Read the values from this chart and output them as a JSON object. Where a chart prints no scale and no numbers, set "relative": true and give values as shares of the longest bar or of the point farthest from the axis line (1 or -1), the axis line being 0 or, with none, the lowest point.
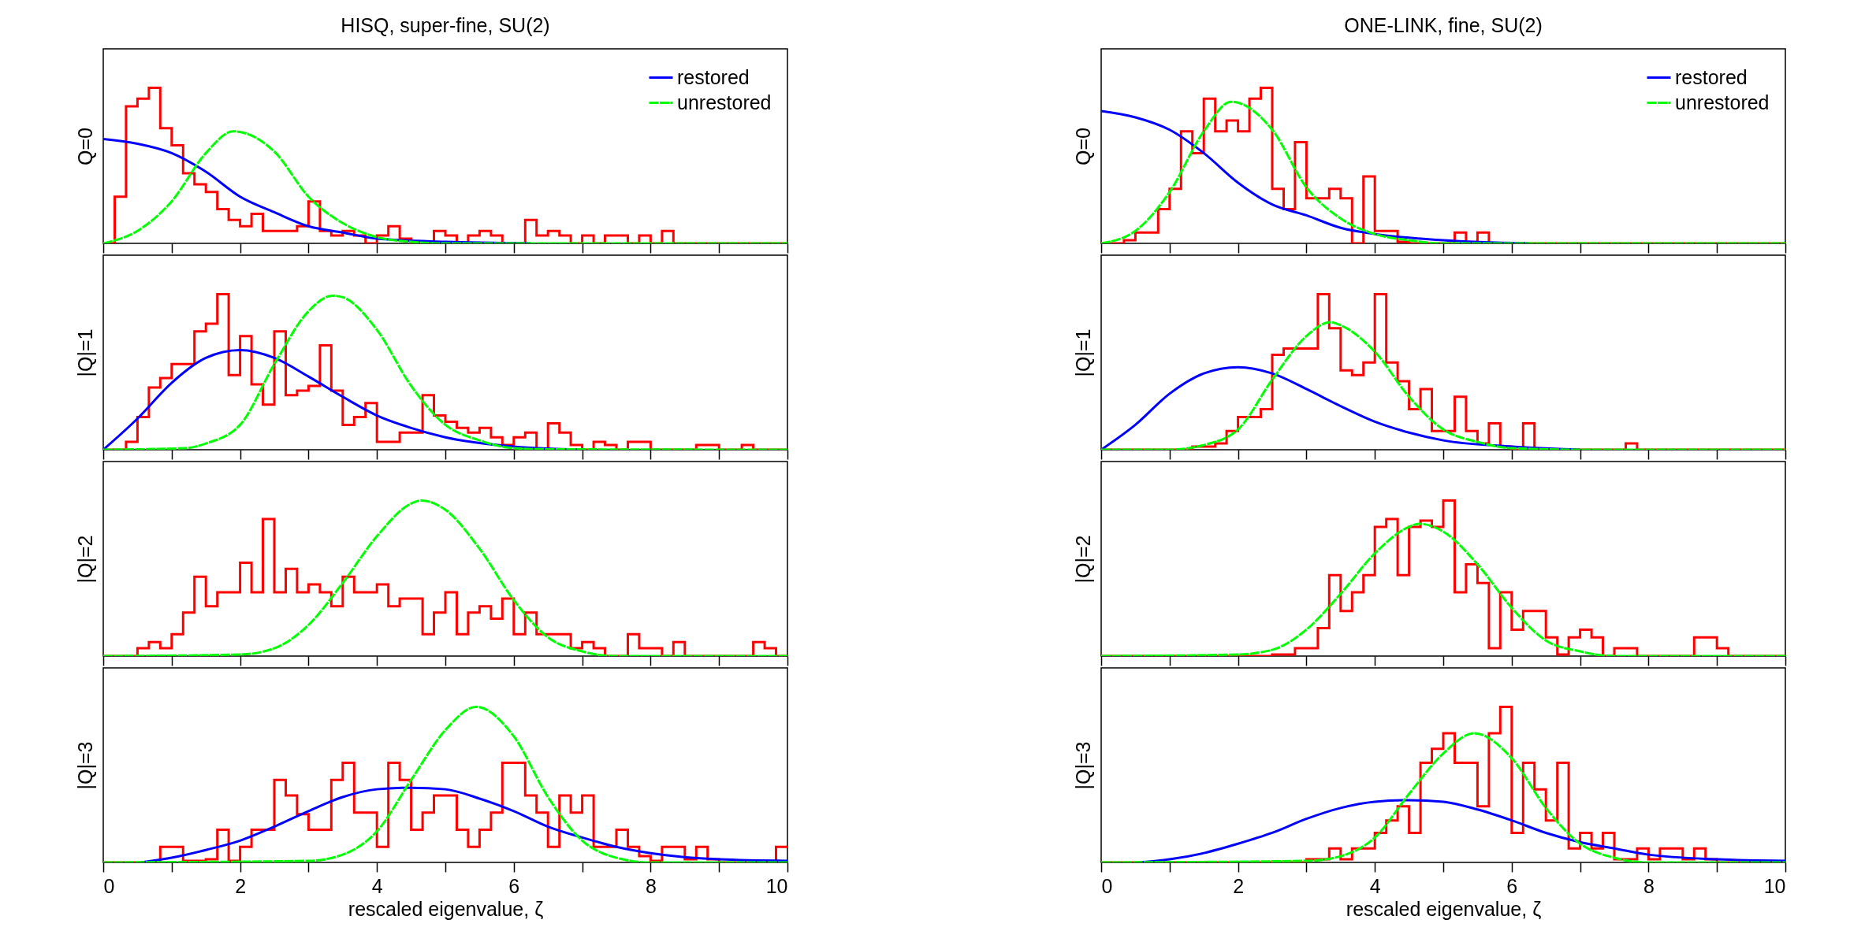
{
  "chart_data": [
    {
      "type": "line",
      "title": "HISQ, super-fine, SU(2)",
      "ylabel": "Q=0",
      "relative": true,
      "xlim": [
        0,
        10
      ],
      "xticks": [
        0,
        {
          "value": 1,
          "label": null
        },
        2,
        {
          "value": 3,
          "label": null
        },
        4,
        {
          "value": 5,
          "label": null
        },
        6,
        {
          "value": 7,
          "label": null
        },
        8,
        {
          "value": 9,
          "label": null
        },
        10
      ],
      "tick_labels": false,
      "legend": "top right",
      "series": [
        {
          "type": "histogram",
          "color": "#ff0000",
          "bins": [
            0,
            0.167,
            0.333,
            0.5,
            0.667,
            0.833,
            1,
            1.167,
            1.333,
            1.5,
            1.667,
            1.833,
            2,
            2.167,
            2.333,
            2.5,
            2.667,
            2.833,
            3,
            3.167,
            3.333,
            3.5,
            3.667,
            3.833,
            4,
            4.167,
            4.333,
            4.5,
            4.667,
            4.833,
            5,
            5.167,
            5.333,
            5.5,
            5.667,
            5.833,
            6,
            6.167,
            6.333,
            6.5,
            6.667,
            6.833,
            7,
            7.167,
            7.333,
            7.5,
            7.667,
            7.833,
            8,
            8.167,
            8.333,
            8.5,
            8.667,
            8.833,
            9,
            9.167,
            9.333,
            9.5,
            9.667,
            9.833,
            10
          ],
          "values": [
            0,
            0.3,
            0.88,
            0.93,
            1,
            0.74,
            0.63,
            0.45,
            0.38,
            0.33,
            0.22,
            0.15,
            0.11,
            0.19,
            0.08,
            0.08,
            0.08,
            0.11,
            0.27,
            0.08,
            0.05,
            0.08,
            0.05,
            0,
            0.05,
            0.11,
            0.03,
            0,
            0,
            0.08,
            0.05,
            0,
            0.05,
            0.08,
            0.05,
            0,
            0,
            0.15,
            0.05,
            0.08,
            0.05,
            0,
            0.05,
            0,
            0.05,
            0.05,
            0,
            0.05,
            0,
            0.08,
            0,
            0,
            0,
            0,
            0,
            0,
            0,
            0,
            0,
            0
          ]
        },
        {
          "name": "restored",
          "type": "line",
          "color": "#0000ff",
          "x": [
            0,
            0.5,
            1,
            1.5,
            2,
            2.5,
            3,
            3.5,
            4,
            5,
            6.25
          ],
          "values": [
            0.67,
            0.64,
            0.58,
            0.46,
            0.3,
            0.2,
            0.11,
            0.07,
            0.03,
            0.01,
            0
          ]
        },
        {
          "name": "unrestored",
          "type": "line",
          "color": "#00ff00",
          "line_style": "dashed",
          "x": [
            0,
            0.5,
            1,
            1.5,
            1.9,
            2.5,
            3,
            3.5,
            4,
            4.5,
            5,
            10
          ],
          "values": [
            0,
            0.08,
            0.27,
            0.58,
            0.72,
            0.59,
            0.3,
            0.13,
            0.04,
            0.01,
            0,
            0
          ]
        }
      ]
    },
    {
      "type": "line",
      "title": "ONE-LINK, fine, SU(2)",
      "ylabel": "Q=0",
      "relative": true,
      "xlim": [
        0,
        10
      ],
      "xticks": [
        0,
        {
          "value": 1,
          "label": null
        },
        2,
        {
          "value": 3,
          "label": null
        },
        4,
        {
          "value": 5,
          "label": null
        },
        6,
        {
          "value": 7,
          "label": null
        },
        8,
        {
          "value": 9,
          "label": null
        },
        10
      ],
      "tick_labels": false,
      "legend": "top right",
      "series": [
        {
          "type": "histogram",
          "color": "#ff0000",
          "bins": [
            0,
            0.167,
            0.333,
            0.5,
            0.667,
            0.833,
            1,
            1.167,
            1.333,
            1.5,
            1.667,
            1.833,
            2,
            2.167,
            2.333,
            2.5,
            2.667,
            2.833,
            3,
            3.167,
            3.333,
            3.5,
            3.667,
            3.833,
            4,
            4.167,
            4.333,
            4.5,
            4.667,
            4.833,
            5,
            5.167,
            5.333,
            5.5,
            5.667,
            5.833,
            6,
            6.167,
            6.333,
            6.5,
            6.667,
            6.833,
            7,
            7.167,
            7.333,
            7.5,
            7.667,
            7.833,
            8,
            8.167,
            8.333,
            8.5,
            8.667,
            8.833,
            9,
            9.167,
            9.333,
            9.5,
            9.667,
            9.833,
            10
          ],
          "values": [
            0,
            0,
            0.02,
            0.07,
            0.07,
            0.22,
            0.35,
            0.72,
            0.58,
            0.93,
            0.72,
            0.79,
            0.72,
            0.93,
            1,
            0.35,
            0.22,
            0.65,
            0.29,
            0.29,
            0.35,
            0.29,
            0,
            0.43,
            0.08,
            0.08,
            0.01,
            0,
            0,
            0,
            0,
            0.07,
            0,
            0.07,
            0,
            0,
            0,
            0,
            0,
            0,
            0,
            0,
            0,
            0,
            0,
            0,
            0,
            0,
            0,
            0,
            0,
            0,
            0,
            0,
            0,
            0,
            0,
            0,
            0,
            0
          ]
        },
        {
          "name": "restored",
          "type": "line",
          "color": "#0000ff",
          "x": [
            0,
            0.5,
            1,
            1.5,
            2,
            2.5,
            3,
            3.5,
            4,
            5,
            6.25
          ],
          "values": [
            0.85,
            0.81,
            0.73,
            0.58,
            0.39,
            0.25,
            0.18,
            0.1,
            0.06,
            0.02,
            0
          ]
        },
        {
          "name": "unrestored",
          "type": "line",
          "color": "#00ff00",
          "line_style": "dashed",
          "x": [
            0,
            0.5,
            1,
            1.5,
            1.9,
            2.5,
            3,
            3.5,
            4,
            4.5,
            5,
            10
          ],
          "values": [
            0,
            0.08,
            0.33,
            0.72,
            0.91,
            0.73,
            0.36,
            0.16,
            0.06,
            0.02,
            0,
            0
          ]
        }
      ]
    },
    {
      "type": "line",
      "ylabel": "|Q|=1",
      "relative": true,
      "xlim": [
        0,
        10
      ],
      "xticks": [
        0,
        {
          "value": 1,
          "label": null
        },
        2,
        {
          "value": 3,
          "label": null
        },
        4,
        {
          "value": 5,
          "label": null
        },
        6,
        {
          "value": 7,
          "label": null
        },
        8,
        {
          "value": 9,
          "label": null
        },
        10
      ],
      "tick_labels": false,
      "series": [
        {
          "type": "histogram",
          "color": "#ff0000",
          "bins": [
            0,
            0.167,
            0.333,
            0.5,
            0.667,
            0.833,
            1,
            1.167,
            1.333,
            1.5,
            1.667,
            1.833,
            2,
            2.167,
            2.333,
            2.5,
            2.667,
            2.833,
            3,
            3.167,
            3.333,
            3.5,
            3.667,
            3.833,
            4,
            4.167,
            4.333,
            4.5,
            4.667,
            4.833,
            5,
            5.167,
            5.333,
            5.5,
            5.667,
            5.833,
            6,
            6.167,
            6.333,
            6.5,
            6.667,
            6.833,
            7,
            7.167,
            7.333,
            7.5,
            7.667,
            7.833,
            8,
            8.167,
            8.333,
            8.5,
            8.667,
            8.833,
            9,
            9.167,
            9.333,
            9.5,
            9.667,
            9.833,
            10
          ],
          "values": [
            0,
            0,
            0.05,
            0.21,
            0.4,
            0.46,
            0.55,
            0.55,
            0.76,
            0.81,
            1,
            0.48,
            0.73,
            0.42,
            0.29,
            0.76,
            0.35,
            0.38,
            0.41,
            0.67,
            0.38,
            0.16,
            0.21,
            0.3,
            0.05,
            0.05,
            0.11,
            0.11,
            0.35,
            0.22,
            0.18,
            0.14,
            0.11,
            0.14,
            0.08,
            0.03,
            0.08,
            0.11,
            0,
            0.17,
            0.11,
            0.03,
            0,
            0.05,
            0.03,
            0,
            0.05,
            0.05,
            0,
            0,
            0,
            0,
            0.03,
            0.03,
            0,
            0,
            0.03,
            0,
            0,
            0
          ]
        },
        {
          "type": "line",
          "color": "#0000ff",
          "x": [
            0,
            0.5,
            1,
            1.5,
            2,
            2.5,
            3,
            3.5,
            4,
            4.5,
            5,
            6,
            7
          ],
          "values": [
            0,
            0.2,
            0.43,
            0.59,
            0.64,
            0.59,
            0.47,
            0.34,
            0.22,
            0.14,
            0.08,
            0.02,
            0
          ]
        },
        {
          "type": "line",
          "color": "#00ff00",
          "line_style": "dashed",
          "x": [
            0,
            1.2,
            1.5,
            2,
            2.5,
            3,
            3.35,
            3.5,
            4,
            4.5,
            5,
            5.5,
            6,
            6.5,
            10
          ],
          "values": [
            0,
            0.01,
            0.04,
            0.16,
            0.55,
            0.89,
            0.99,
            0.98,
            0.77,
            0.41,
            0.16,
            0.06,
            0.01,
            0.003,
            0
          ]
        }
      ]
    },
    {
      "type": "line",
      "ylabel": "|Q|=1",
      "relative": true,
      "xlim": [
        0,
        10
      ],
      "xticks": [
        0,
        {
          "value": 1,
          "label": null
        },
        2,
        {
          "value": 3,
          "label": null
        },
        4,
        {
          "value": 5,
          "label": null
        },
        6,
        {
          "value": 7,
          "label": null
        },
        8,
        {
          "value": 9,
          "label": null
        },
        10
      ],
      "tick_labels": false,
      "series": [
        {
          "type": "histogram",
          "color": "#ff0000",
          "bins": [
            0,
            0.167,
            0.333,
            0.5,
            0.667,
            0.833,
            1,
            1.167,
            1.333,
            1.5,
            1.667,
            1.833,
            2,
            2.167,
            2.333,
            2.5,
            2.667,
            2.833,
            3,
            3.167,
            3.333,
            3.5,
            3.667,
            3.833,
            4,
            4.167,
            4.333,
            4.5,
            4.667,
            4.833,
            5,
            5.167,
            5.333,
            5.5,
            5.667,
            5.833,
            6,
            6.167,
            6.333,
            6.5,
            6.667,
            6.833,
            7,
            7.167,
            7.333,
            7.5,
            7.667,
            7.833,
            8,
            8.167,
            8.333,
            8.5,
            8.667,
            8.833,
            9,
            9.167,
            9.333,
            9.5,
            9.667,
            9.833,
            10
          ],
          "values": [
            0,
            0,
            0,
            0,
            0,
            0,
            0,
            0,
            0.02,
            0.02,
            0.04,
            0.12,
            0.21,
            0.21,
            0.26,
            0.61,
            0.65,
            0.65,
            0.65,
            1,
            0.78,
            0.51,
            0.48,
            0.56,
            1,
            0.56,
            0.44,
            0.26,
            0.39,
            0.12,
            0.12,
            0.34,
            0.12,
            0.04,
            0.17,
            0.02,
            0,
            0.17,
            0,
            0,
            0,
            0,
            0,
            0,
            0,
            0,
            0.04,
            0,
            0,
            0,
            0,
            0,
            0,
            0,
            0,
            0,
            0,
            0,
            0,
            0
          ]
        },
        {
          "type": "line",
          "color": "#0000ff",
          "x": [
            0,
            0.5,
            1,
            1.5,
            2,
            2.5,
            3,
            3.5,
            4,
            4.5,
            5,
            6,
            7
          ],
          "values": [
            0,
            0.16,
            0.36,
            0.49,
            0.53,
            0.49,
            0.39,
            0.28,
            0.18,
            0.11,
            0.06,
            0.02,
            0
          ]
        },
        {
          "type": "line",
          "color": "#00ff00",
          "line_style": "dashed",
          "x": [
            0,
            1,
            1.5,
            2,
            2.5,
            3,
            3.35,
            3.5,
            4,
            4.5,
            5,
            5.5,
            6,
            7,
            10
          ],
          "values": [
            0,
            0,
            0.03,
            0.13,
            0.45,
            0.73,
            0.82,
            0.8,
            0.63,
            0.34,
            0.13,
            0.05,
            0.01,
            0,
            0
          ]
        }
      ]
    },
    {
      "type": "line",
      "ylabel": "|Q|=2",
      "relative": true,
      "xlim": [
        0,
        10
      ],
      "xticks": [
        0,
        {
          "value": 1,
          "label": null
        },
        2,
        {
          "value": 3,
          "label": null
        },
        4,
        {
          "value": 5,
          "label": null
        },
        6,
        {
          "value": 7,
          "label": null
        },
        8,
        {
          "value": 9,
          "label": null
        },
        10
      ],
      "tick_labels": false,
      "series": [
        {
          "type": "histogram",
          "color": "#ff0000",
          "bins": [
            0,
            0.167,
            0.333,
            0.5,
            0.667,
            0.833,
            1,
            1.167,
            1.333,
            1.5,
            1.667,
            1.833,
            2,
            2.167,
            2.333,
            2.5,
            2.667,
            2.833,
            3,
            3.167,
            3.333,
            3.5,
            3.667,
            3.833,
            4,
            4.167,
            4.333,
            4.5,
            4.667,
            4.833,
            5,
            5.167,
            5.333,
            5.5,
            5.667,
            5.833,
            6,
            6.167,
            6.333,
            6.5,
            6.667,
            6.833,
            7,
            7.167,
            7.333,
            7.5,
            7.667,
            7.833,
            8,
            8.167,
            8.333,
            8.5,
            8.667,
            8.833,
            9,
            9.167,
            9.333,
            9.5,
            9.667,
            9.833,
            10
          ],
          "values": [
            0,
            0,
            0,
            0.05,
            0.09,
            0.05,
            0.14,
            0.28,
            0.51,
            0.32,
            0.41,
            0.41,
            0.6,
            0.41,
            0.88,
            0.41,
            0.56,
            0.41,
            0.46,
            0.41,
            0.32,
            0.51,
            0.41,
            0.41,
            0.46,
            0.32,
            0.37,
            0.37,
            0.14,
            0.28,
            0.41,
            0.14,
            0.28,
            0.32,
            0.24,
            0.37,
            0.14,
            0.28,
            0.14,
            0.14,
            0.14,
            0.05,
            0.09,
            0.05,
            0,
            0,
            0.14,
            0.05,
            0.05,
            0,
            0.09,
            0,
            0,
            0,
            0,
            0,
            0,
            0.09,
            0.05,
            0
          ]
        },
        {
          "type": "line",
          "color": "#00ff00",
          "line_style": "dashed",
          "x": [
            0,
            2,
            2.5,
            3,
            3.5,
            4,
            4.5,
            4.65,
            5,
            5.5,
            6,
            6.5,
            7,
            7.5,
            10
          ],
          "values": [
            0,
            0.01,
            0.05,
            0.2,
            0.47,
            0.77,
            0.98,
            1,
            0.94,
            0.69,
            0.36,
            0.12,
            0.03,
            0,
            0
          ]
        }
      ]
    },
    {
      "type": "line",
      "ylabel": "|Q|=2",
      "relative": true,
      "xlim": [
        0,
        10
      ],
      "xticks": [
        0,
        {
          "value": 1,
          "label": null
        },
        2,
        {
          "value": 3,
          "label": null
        },
        4,
        {
          "value": 5,
          "label": null
        },
        6,
        {
          "value": 7,
          "label": null
        },
        8,
        {
          "value": 9,
          "label": null
        },
        10
      ],
      "tick_labels": false,
      "series": [
        {
          "type": "histogram",
          "color": "#ff0000",
          "bins": [
            0,
            0.167,
            0.333,
            0.5,
            0.667,
            0.833,
            1,
            1.167,
            1.333,
            1.5,
            1.667,
            1.833,
            2,
            2.167,
            2.333,
            2.5,
            2.667,
            2.833,
            3,
            3.167,
            3.333,
            3.5,
            3.667,
            3.833,
            4,
            4.167,
            4.333,
            4.5,
            4.667,
            4.833,
            5,
            5.167,
            5.333,
            5.5,
            5.667,
            5.833,
            6,
            6.167,
            6.333,
            6.5,
            6.667,
            6.833,
            7,
            7.167,
            7.333,
            7.5,
            7.667,
            7.833,
            8,
            8.167,
            8.333,
            8.5,
            8.667,
            8.833,
            9,
            9.167,
            9.333,
            9.5,
            9.667,
            9.833,
            10
          ],
          "values": [
            0,
            0,
            0,
            0,
            0,
            0,
            0,
            0,
            0,
            0,
            0,
            0,
            0,
            0,
            0,
            0.01,
            0.01,
            0.05,
            0.05,
            0.18,
            0.52,
            0.29,
            0.41,
            0.52,
            0.83,
            0.88,
            0.52,
            0.83,
            0.87,
            0.83,
            1,
            0.41,
            0.59,
            0.47,
            0.05,
            0.41,
            0.17,
            0.29,
            0.29,
            0.12,
            0.01,
            0.12,
            0.17,
            0.12,
            0,
            0.05,
            0.05,
            0,
            0,
            0,
            0,
            0,
            0.12,
            0.12,
            0.05,
            0,
            0,
            0,
            0,
            0
          ]
        },
        {
          "type": "line",
          "color": "#00ff00",
          "line_style": "dashed",
          "x": [
            0,
            2,
            2.5,
            3,
            3.5,
            4,
            4.5,
            4.65,
            5,
            5.5,
            6,
            6.5,
            7,
            7.5,
            10
          ],
          "values": [
            0,
            0.01,
            0.04,
            0.17,
            0.4,
            0.66,
            0.83,
            0.85,
            0.8,
            0.59,
            0.31,
            0.1,
            0.03,
            0,
            0
          ]
        }
      ]
    },
    {
      "type": "line",
      "ylabel": "|Q|=3",
      "xlabel": "rescaled eigenvalue, ζ",
      "relative": true,
      "xlim": [
        0,
        10
      ],
      "xticks": [
        0,
        {
          "value": 1,
          "label": null
        },
        2,
        {
          "value": 3,
          "label": null
        },
        4,
        {
          "value": 5,
          "label": null
        },
        6,
        {
          "value": 7,
          "label": null
        },
        8,
        {
          "value": 9,
          "label": null
        },
        10
      ],
      "tick_labels": "x",
      "series": [
        {
          "type": "histogram",
          "color": "#ff0000",
          "bins": [
            0,
            0.167,
            0.333,
            0.5,
            0.667,
            0.833,
            1,
            1.167,
            1.333,
            1.5,
            1.667,
            1.833,
            2,
            2.167,
            2.333,
            2.5,
            2.667,
            2.833,
            3,
            3.167,
            3.333,
            3.5,
            3.667,
            3.833,
            4,
            4.167,
            4.333,
            4.5,
            4.667,
            4.833,
            5,
            5.167,
            5.333,
            5.5,
            5.667,
            5.833,
            6,
            6.167,
            6.333,
            6.5,
            6.667,
            6.833,
            7,
            7.167,
            7.333,
            7.5,
            7.667,
            7.833,
            8,
            8.167,
            8.333,
            8.5,
            8.667,
            8.833,
            9,
            9.167,
            9.333,
            9.5,
            9.667,
            9.833,
            10
          ],
          "values": [
            0,
            0,
            0,
            0,
            0,
            0.1,
            0.1,
            0.01,
            0.01,
            0.02,
            0.21,
            0.01,
            0.1,
            0.21,
            0.21,
            0.53,
            0.43,
            0.31,
            0.21,
            0.21,
            0.53,
            0.64,
            0.32,
            0.32,
            0.1,
            0.64,
            0.53,
            0.21,
            0.32,
            0.43,
            0.43,
            0.21,
            0.1,
            0.21,
            0.32,
            0.64,
            0.64,
            0.43,
            0.32,
            0.1,
            0.43,
            0.32,
            0.43,
            0.1,
            0.1,
            0.21,
            0.1,
            0.04,
            0.01,
            0.1,
            0.1,
            0.02,
            0.1,
            0.02,
            0,
            0,
            0,
            0,
            0,
            0.1
          ]
        },
        {
          "type": "line",
          "color": "#0000ff",
          "x": [
            0.55,
            1,
            1.5,
            2,
            2.5,
            3,
            3.5,
            4,
            4.5,
            5,
            5.5,
            6,
            6.5,
            7,
            7.5,
            8,
            9,
            10
          ],
          "values": [
            0,
            0.03,
            0.08,
            0.14,
            0.23,
            0.33,
            0.42,
            0.47,
            0.48,
            0.47,
            0.41,
            0.33,
            0.23,
            0.16,
            0.1,
            0.06,
            0.02,
            0.01
          ]
        },
        {
          "type": "line",
          "color": "#00ff00",
          "line_style": "dashed",
          "x": [
            0,
            3,
            3.5,
            4,
            4.5,
            5,
            5.45,
            6,
            6.5,
            7,
            7.5,
            8,
            10
          ],
          "values": [
            0,
            0.01,
            0.05,
            0.2,
            0.53,
            0.85,
            1,
            0.81,
            0.42,
            0.14,
            0.03,
            0,
            0
          ]
        }
      ]
    },
    {
      "type": "line",
      "ylabel": "|Q|=3",
      "xlabel": "rescaled eigenvalue, ζ",
      "relative": true,
      "xlim": [
        0,
        10
      ],
      "xticks": [
        0,
        {
          "value": 1,
          "label": null
        },
        2,
        {
          "value": 3,
          "label": null
        },
        4,
        {
          "value": 5,
          "label": null
        },
        6,
        {
          "value": 7,
          "label": null
        },
        8,
        {
          "value": 9,
          "label": null
        },
        10
      ],
      "tick_labels": "x",
      "series": [
        {
          "type": "histogram",
          "color": "#ff0000",
          "bins": [
            0,
            0.167,
            0.333,
            0.5,
            0.667,
            0.833,
            1,
            1.167,
            1.333,
            1.5,
            1.667,
            1.833,
            2,
            2.167,
            2.333,
            2.5,
            2.667,
            2.833,
            3,
            3.167,
            3.333,
            3.5,
            3.667,
            3.833,
            4,
            4.167,
            4.333,
            4.5,
            4.667,
            4.833,
            5,
            5.167,
            5.333,
            5.5,
            5.667,
            5.833,
            6,
            6.167,
            6.333,
            6.5,
            6.667,
            6.833,
            7,
            7.167,
            7.333,
            7.5,
            7.667,
            7.833,
            8,
            8.167,
            8.333,
            8.5,
            8.667,
            8.833,
            9,
            9.167,
            9.333,
            9.5,
            9.667,
            9.833,
            10
          ],
          "values": [
            0,
            0,
            0,
            0,
            0,
            0,
            0,
            0,
            0,
            0,
            0,
            0,
            0,
            0,
            0,
            0,
            0,
            0,
            0.02,
            0.02,
            0.09,
            0.02,
            0.09,
            0.09,
            0.19,
            0.27,
            0.36,
            0.19,
            0.64,
            0.73,
            0.83,
            0.64,
            0.64,
            0.36,
            0.83,
            1,
            0.19,
            0.64,
            0.47,
            0.27,
            0.64,
            0.09,
            0.19,
            0.09,
            0.19,
            0.02,
            0.02,
            0.09,
            0.02,
            0.09,
            0.09,
            0.02,
            0.09,
            0.02,
            0,
            0,
            0,
            0,
            0,
            0
          ]
        },
        {
          "type": "line",
          "color": "#0000ff",
          "x": [
            0.55,
            1,
            1.5,
            2,
            2.5,
            3,
            3.5,
            4,
            4.5,
            5,
            5.5,
            6,
            6.5,
            7,
            7.5,
            8,
            9,
            10
          ],
          "values": [
            0,
            0.02,
            0.06,
            0.12,
            0.19,
            0.28,
            0.35,
            0.39,
            0.4,
            0.39,
            0.34,
            0.27,
            0.19,
            0.13,
            0.09,
            0.05,
            0.02,
            0.01
          ]
        },
        {
          "type": "line",
          "color": "#00ff00",
          "line_style": "dashed",
          "x": [
            0,
            3,
            3.5,
            4,
            4.5,
            5,
            5.45,
            6,
            6.5,
            7,
            7.5,
            8,
            10
          ],
          "values": [
            0,
            0.01,
            0.04,
            0.16,
            0.44,
            0.7,
            0.83,
            0.67,
            0.35,
            0.12,
            0.03,
            0,
            0
          ]
        }
      ]
    }
  ]
}
